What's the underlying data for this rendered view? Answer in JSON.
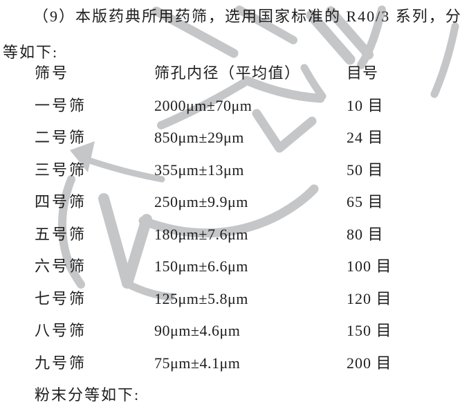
{
  "page": {
    "background": "#ffffff",
    "text_color": "#1e1e1e"
  },
  "watermark": {
    "color": "#c5c6c8"
  },
  "intro": {
    "lines": [
      "（9）本版药典所用药筛，选用国家标准的 R40/3 系列，分",
      "等如下:"
    ]
  },
  "table": {
    "headers": [
      "筛号",
      "筛孔内径（平均值）",
      "目号"
    ],
    "rows": [
      [
        "一号筛",
        "2000μm±70μm",
        "10 目"
      ],
      [
        "二号筛",
        "850μm±29μm",
        "24 目"
      ],
      [
        "三号筛",
        "355μm±13μm",
        "50 目"
      ],
      [
        "四号筛",
        "250μm±9.9μm",
        "65 目"
      ],
      [
        "五号筛",
        "180μm±7.6μm",
        "80 目"
      ],
      [
        "六号筛",
        "150μm±6.6μm",
        "100 目"
      ],
      [
        "七号筛",
        "125μm±5.8μm",
        "120 目"
      ],
      [
        "八号筛",
        "90μm±4.6μm",
        "150 目"
      ],
      [
        "九号筛",
        "75μm±4.1μm",
        "200 目"
      ]
    ]
  },
  "footer": {
    "text": "粉末分等如下:"
  }
}
